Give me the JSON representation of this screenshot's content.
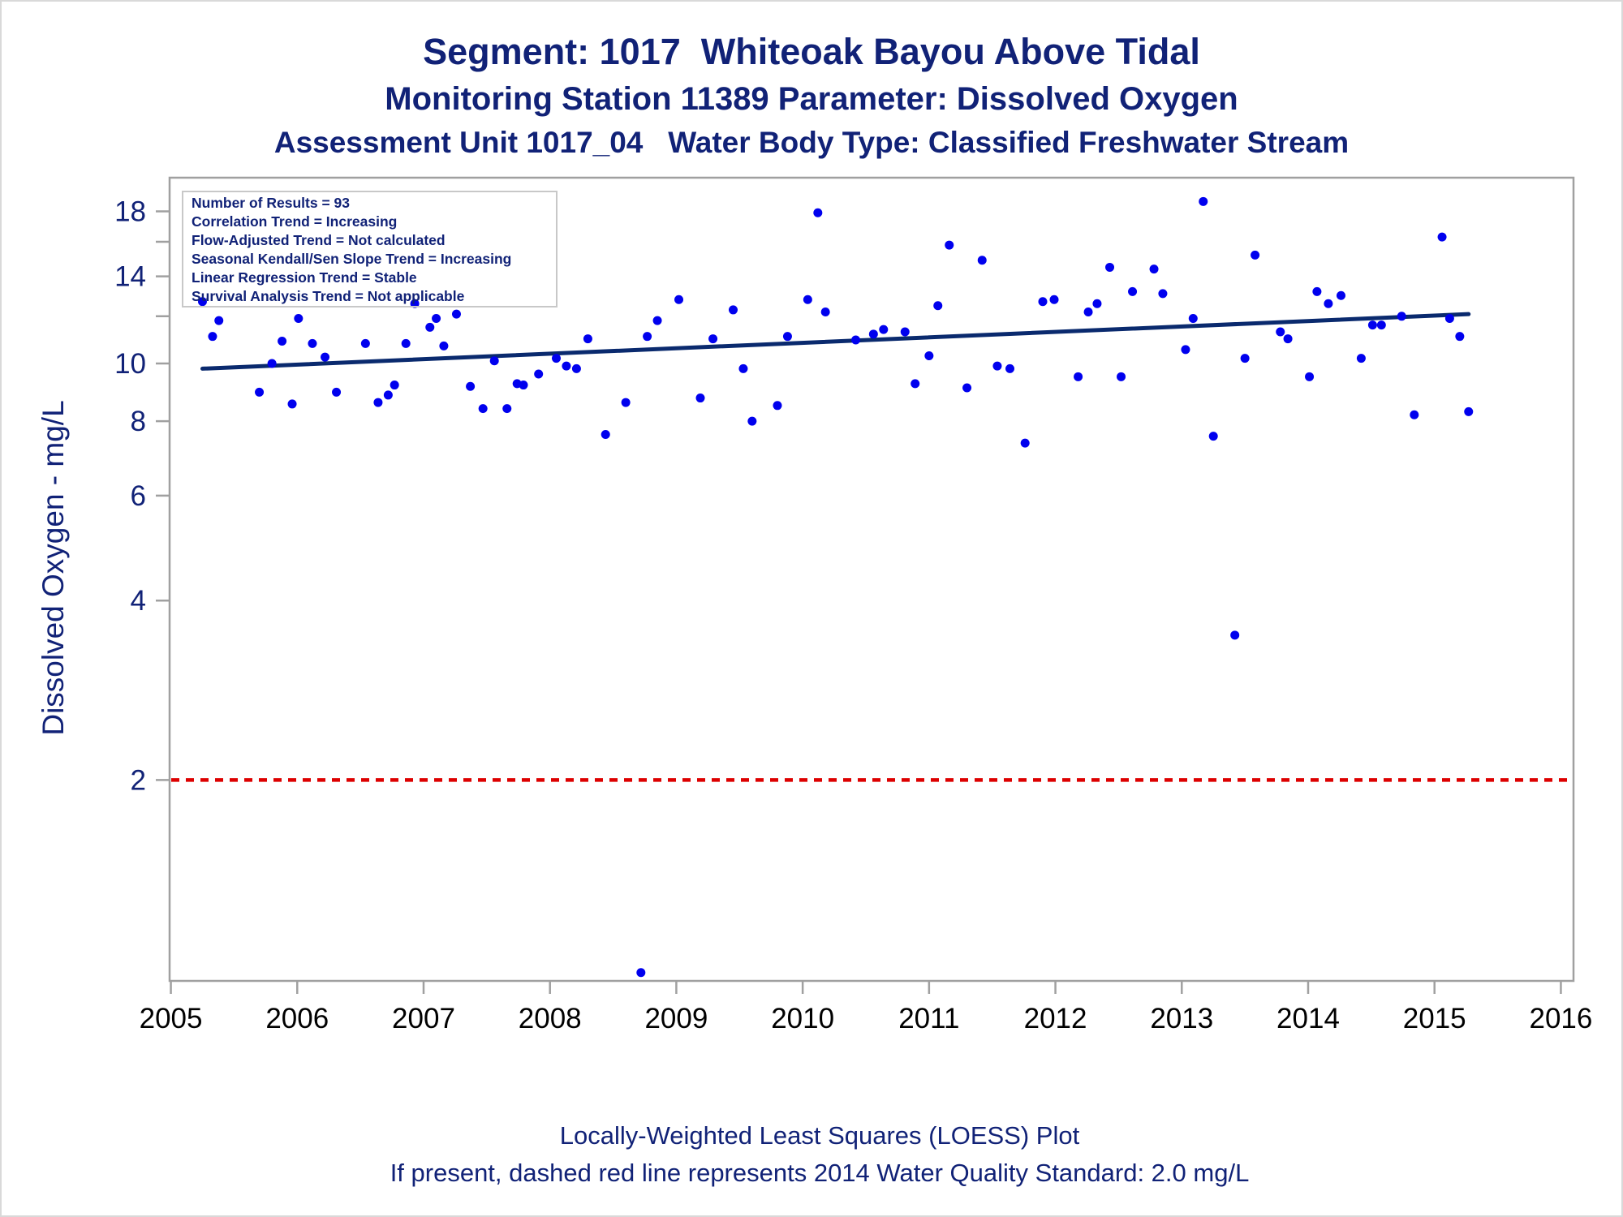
{
  "header": {
    "title": "Segment: 1017  Whiteoak Bayou Above Tidal",
    "subtitle": "Monitoring Station 11389 Parameter: Dissolved Oxygen",
    "subtitle2": "Assessment Unit 1017_04   Water Body Type: Classified Freshwater Stream"
  },
  "footer": {
    "line1": "Locally-Weighted Least Squares (LOESS) Plot",
    "line2": "If present, dashed red line represents 2014 Water Quality Standard: 2.0 mg/L"
  },
  "stats_box": [
    "Number of Results = 93",
    "Correlation Trend = Increasing",
    "Flow-Adjusted Trend = Not calculated",
    "Seasonal Kendall/Sen Slope Trend = Increasing",
    "Linear Regression Trend = Stable",
    "Survival Analysis Trend = Not applicable"
  ],
  "colors": {
    "text": "#112277",
    "points": "#0000ee",
    "trend_line": "#0a2a6e",
    "standard_line": "#dd0000",
    "axis": "#a0a0a0"
  },
  "chart_data": {
    "type": "scatter",
    "xlabel": "",
    "ylabel": "Dissolved Oxygen - mg/L",
    "x_ticks": [
      2005,
      2006,
      2007,
      2008,
      2009,
      2010,
      2011,
      2012,
      2013,
      2014,
      2015,
      2016
    ],
    "y_ticks": [
      2,
      4,
      6,
      8,
      10,
      14,
      18
    ],
    "y_scale": "log",
    "xlim": [
      2004.99,
      2016.1
    ],
    "ylim": [
      0.92,
      20.5
    ],
    "grid": false,
    "legend": "none",
    "standard_line": {
      "y": 2.0,
      "style": "dashed",
      "color": "#dd0000"
    },
    "trend_line": {
      "x": [
        2005.25,
        2015.27
      ],
      "y": [
        9.8,
        12.1
      ]
    },
    "points": [
      [
        2005.25,
        12.7
      ],
      [
        2005.33,
        11.1
      ],
      [
        2005.38,
        11.8
      ],
      [
        2005.7,
        8.95
      ],
      [
        2005.8,
        10.0
      ],
      [
        2005.88,
        10.9
      ],
      [
        2005.96,
        8.55
      ],
      [
        2006.01,
        11.9
      ],
      [
        2006.12,
        10.8
      ],
      [
        2006.22,
        10.25
      ],
      [
        2006.31,
        8.95
      ],
      [
        2006.54,
        10.8
      ],
      [
        2006.64,
        8.6
      ],
      [
        2006.72,
        8.85
      ],
      [
        2006.77,
        9.2
      ],
      [
        2006.86,
        10.8
      ],
      [
        2006.93,
        12.6
      ],
      [
        2007.05,
        11.5
      ],
      [
        2007.1,
        11.9
      ],
      [
        2007.16,
        10.7
      ],
      [
        2007.26,
        12.1
      ],
      [
        2007.37,
        9.15
      ],
      [
        2007.47,
        8.4
      ],
      [
        2007.56,
        10.1
      ],
      [
        2007.66,
        8.4
      ],
      [
        2007.74,
        9.25
      ],
      [
        2007.79,
        9.2
      ],
      [
        2007.91,
        9.6
      ],
      [
        2008.05,
        10.2
      ],
      [
        2008.13,
        9.9
      ],
      [
        2008.21,
        9.8
      ],
      [
        2008.3,
        11.0
      ],
      [
        2008.44,
        7.6
      ],
      [
        2008.6,
        8.6
      ],
      [
        2008.72,
        0.95
      ],
      [
        2008.77,
        11.1
      ],
      [
        2008.85,
        11.8
      ],
      [
        2009.02,
        12.8
      ],
      [
        2009.19,
        8.75
      ],
      [
        2009.29,
        11.0
      ],
      [
        2009.45,
        12.3
      ],
      [
        2009.53,
        9.8
      ],
      [
        2009.6,
        8.0
      ],
      [
        2009.8,
        8.5
      ],
      [
        2009.88,
        11.1
      ],
      [
        2010.04,
        12.8
      ],
      [
        2010.12,
        17.9
      ],
      [
        2010.18,
        12.2
      ],
      [
        2010.42,
        10.95
      ],
      [
        2010.56,
        11.2
      ],
      [
        2010.64,
        11.4
      ],
      [
        2010.81,
        11.3
      ],
      [
        2010.89,
        9.25
      ],
      [
        2011.0,
        10.3
      ],
      [
        2011.07,
        12.5
      ],
      [
        2011.16,
        15.8
      ],
      [
        2011.3,
        9.1
      ],
      [
        2011.42,
        14.9
      ],
      [
        2011.54,
        9.9
      ],
      [
        2011.64,
        9.8
      ],
      [
        2011.76,
        7.35
      ],
      [
        2011.9,
        12.7
      ],
      [
        2011.99,
        12.8
      ],
      [
        2012.18,
        9.5
      ],
      [
        2012.26,
        12.2
      ],
      [
        2012.33,
        12.6
      ],
      [
        2012.43,
        14.5
      ],
      [
        2012.52,
        9.5
      ],
      [
        2012.61,
        13.2
      ],
      [
        2012.78,
        14.4
      ],
      [
        2012.85,
        13.1
      ],
      [
        2013.03,
        10.55
      ],
      [
        2013.09,
        11.9
      ],
      [
        2013.17,
        18.7
      ],
      [
        2013.25,
        7.55
      ],
      [
        2013.42,
        3.5
      ],
      [
        2013.5,
        10.2
      ],
      [
        2013.58,
        15.2
      ],
      [
        2013.78,
        11.3
      ],
      [
        2013.84,
        11.0
      ],
      [
        2014.01,
        9.5
      ],
      [
        2014.07,
        13.2
      ],
      [
        2014.16,
        12.6
      ],
      [
        2014.26,
        13.0
      ],
      [
        2014.42,
        10.2
      ],
      [
        2014.51,
        11.6
      ],
      [
        2014.58,
        11.6
      ],
      [
        2014.74,
        12.0
      ],
      [
        2014.84,
        8.2
      ],
      [
        2015.06,
        16.3
      ],
      [
        2015.12,
        11.9
      ],
      [
        2015.2,
        11.1
      ],
      [
        2015.27,
        8.3
      ]
    ]
  }
}
